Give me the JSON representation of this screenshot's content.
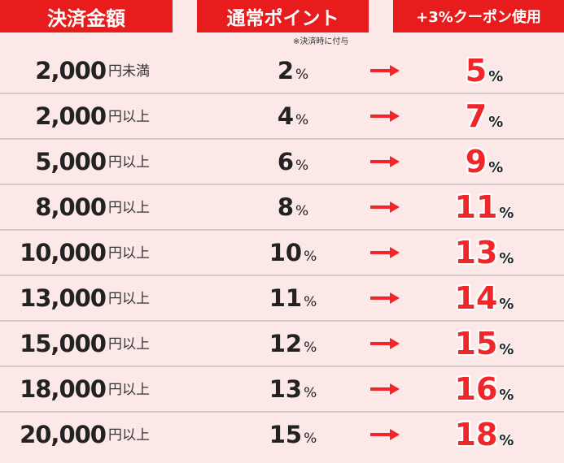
{
  "headers": {
    "amount": "決済金額",
    "normal": "通常ポイント",
    "coupon": "+3%クーポン使用"
  },
  "note": "※決済時に付与",
  "percent_sign": "%",
  "colors": {
    "header": "#e81c1c",
    "background": "#fde8e8",
    "coupon_value": "#f0262a"
  },
  "rows": [
    {
      "amount": "2,000",
      "unit": "円未満",
      "normal": "2",
      "coupon": "5"
    },
    {
      "amount": "2,000",
      "unit": "円以上",
      "normal": "4",
      "coupon": "7"
    },
    {
      "amount": "5,000",
      "unit": "円以上",
      "normal": "6",
      "coupon": "9"
    },
    {
      "amount": "8,000",
      "unit": "円以上",
      "normal": "8",
      "coupon": "11"
    },
    {
      "amount": "10,000",
      "unit": "円以上",
      "normal": "10",
      "coupon": "13"
    },
    {
      "amount": "13,000",
      "unit": "円以上",
      "normal": "11",
      "coupon": "14"
    },
    {
      "amount": "15,000",
      "unit": "円以上",
      "normal": "12",
      "coupon": "15"
    },
    {
      "amount": "18,000",
      "unit": "円以上",
      "normal": "13",
      "coupon": "16"
    },
    {
      "amount": "20,000",
      "unit": "円以上",
      "normal": "15",
      "coupon": "18"
    }
  ]
}
